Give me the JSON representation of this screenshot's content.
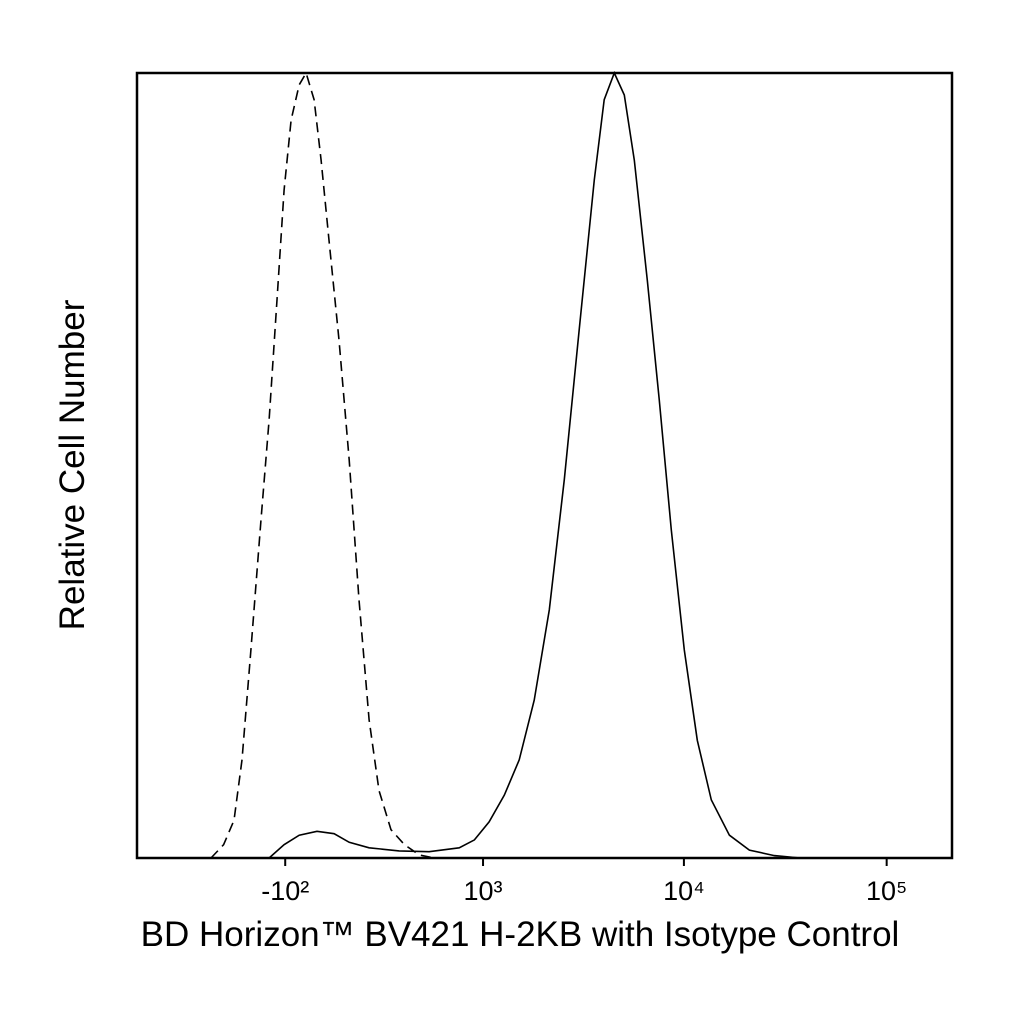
{
  "chart_data": {
    "type": "line",
    "xlabel": "BD Horizon™ BV421 H-2KB with Isotype Control",
    "ylabel": "Relative Cell Number",
    "xscale": "biexponential",
    "xlim": [
      -1100,
      210000
    ],
    "xticks": [
      {
        "value": -100,
        "label": "-10²"
      },
      {
        "value": 1000,
        "label": "10³"
      },
      {
        "value": 10000,
        "label": "10⁴"
      },
      {
        "value": 100000,
        "label": "10⁵"
      }
    ],
    "ylim": [
      0,
      100
    ],
    "series": [
      {
        "color": "#000000",
        "dashed": true,
        "x": [
          -437,
          -365,
          -312,
          -274,
          -234,
          -192,
          -160,
          -130,
          -104,
          -79,
          -51,
          -27,
          0,
          24,
          51,
          86,
          123,
          160,
          200,
          242,
          297,
          365,
          450,
          548
        ],
        "values": [
          0,
          1.7,
          4.8,
          12.5,
          26.5,
          43.1,
          55.8,
          71.1,
          85.1,
          94.0,
          98.5,
          100,
          96.6,
          88.9,
          78.7,
          66.0,
          50.7,
          32.9,
          17.6,
          8.6,
          3.6,
          1.7,
          0.4,
          0
        ]
      },
      {
        "color": "#000000",
        "dashed": false,
        "x": [
          -160,
          -104,
          -51,
          10,
          69,
          123,
          200,
          337,
          513,
          751,
          902,
          1074,
          1284,
          1527,
          1815,
          2158,
          2563,
          3040,
          3609,
          4041,
          4533,
          5080,
          5690,
          6600,
          7560,
          8670,
          10050,
          11640,
          13650,
          16770,
          21030,
          27930,
          37410
        ],
        "values": [
          0,
          1.7,
          2.9,
          3.4,
          3.1,
          2.0,
          1.3,
          0.9,
          0.8,
          1.3,
          2.3,
          4.6,
          8.0,
          12.5,
          20.1,
          31.6,
          48.2,
          67.3,
          86.4,
          96.6,
          100,
          97.2,
          88.9,
          73.6,
          58.3,
          41.8,
          26.5,
          15.0,
          7.4,
          2.9,
          1.0,
          0.3,
          0
        ]
      }
    ]
  }
}
